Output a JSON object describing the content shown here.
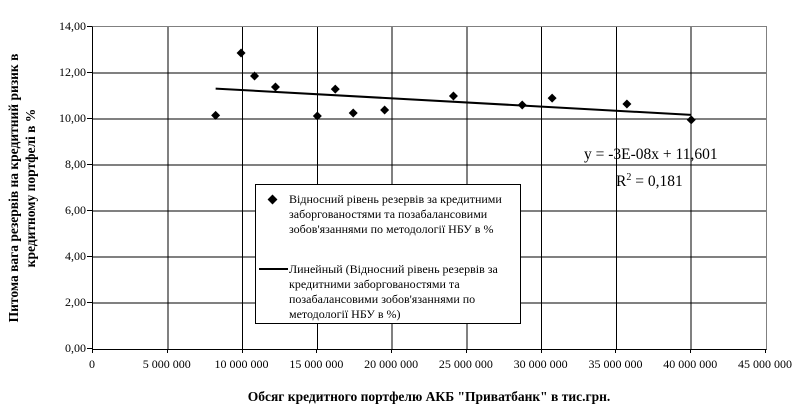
{
  "figure": {
    "background": "#ffffff"
  },
  "chart_data": {
    "type": "scatter",
    "title": "",
    "xlabel": "Обсяг кредитного портфелю АКБ \"Приватбанк\" в тис.грн.",
    "ylabel": "Питома вага резервів на кредитний ризик в кредитному портфелі в %",
    "ylabel_line1": "Питома вага резервів на кредитний ризик в",
    "ylabel_line2": "кредитному портфелі в %",
    "xlim": [
      0,
      45000000
    ],
    "ylim": [
      0,
      14
    ],
    "grid": true,
    "x_tick_values": [
      0,
      5000000,
      10000000,
      15000000,
      20000000,
      25000000,
      30000000,
      35000000,
      40000000,
      45000000
    ],
    "x_tick_labels": [
      "0",
      "5 000 000",
      "10 000 000",
      "15 000 000",
      "20 000 000",
      "25 000 000",
      "30 000 000",
      "35 000 000",
      "40 000 000",
      "45 000 000"
    ],
    "y_tick_values": [
      0,
      2,
      4,
      6,
      8,
      10,
      12,
      14
    ],
    "y_tick_labels": [
      "0,00",
      "2,00",
      "4,00",
      "6,00",
      "8,00",
      "10,00",
      "12,00",
      "14,00"
    ],
    "series": [
      {
        "name": "Відносний рівень резервів за кредитними заборгованостями та позабалансовими зобов'язаннями по методології НБУ в %",
        "type": "scatter",
        "marker": "diamond",
        "color": "#000000",
        "points": [
          [
            8200000,
            10.16
          ],
          [
            9900000,
            12.87
          ],
          [
            10800000,
            11.87
          ],
          [
            12200000,
            11.39
          ],
          [
            15000000,
            10.13
          ],
          [
            16200000,
            11.3
          ],
          [
            17400000,
            10.26
          ],
          [
            19500000,
            10.39
          ],
          [
            24100000,
            11.0
          ],
          [
            28700000,
            10.61
          ],
          [
            30700000,
            10.91
          ],
          [
            35700000,
            10.65
          ],
          [
            40000000,
            9.96
          ]
        ]
      },
      {
        "name": "Линейный (Відносний рівень резервів за кредитними заборгованостями та позабалансовими зобов'язаннями по методології НБУ в %)",
        "type": "line",
        "color": "#000000",
        "points": [
          [
            8200000,
            11.32
          ],
          [
            40000000,
            10.18
          ]
        ]
      }
    ],
    "annotations": {
      "equation": "y = -3E-08x + 11,601",
      "r2_base": "R",
      "r2_sup": "2",
      "r2_rest": " = 0,181"
    },
    "legend": {
      "position": "center",
      "entries": [
        {
          "marker": "diamond",
          "label": "Відносний рівень резервів за кредитними заборгованостями та позабалансовими зобов'язаннями по методології НБУ в %"
        },
        {
          "marker": "line",
          "label": "Линейный (Відносний рівень резервів за кредитними заборгованостями та позабалансовими зобов'язаннями по методології НБУ в %)"
        }
      ]
    },
    "colors": {
      "marker": "#000000",
      "trendline": "#000000",
      "gridline": "#000000",
      "plot_border_gray": "#808080",
      "text": "#000000"
    }
  }
}
